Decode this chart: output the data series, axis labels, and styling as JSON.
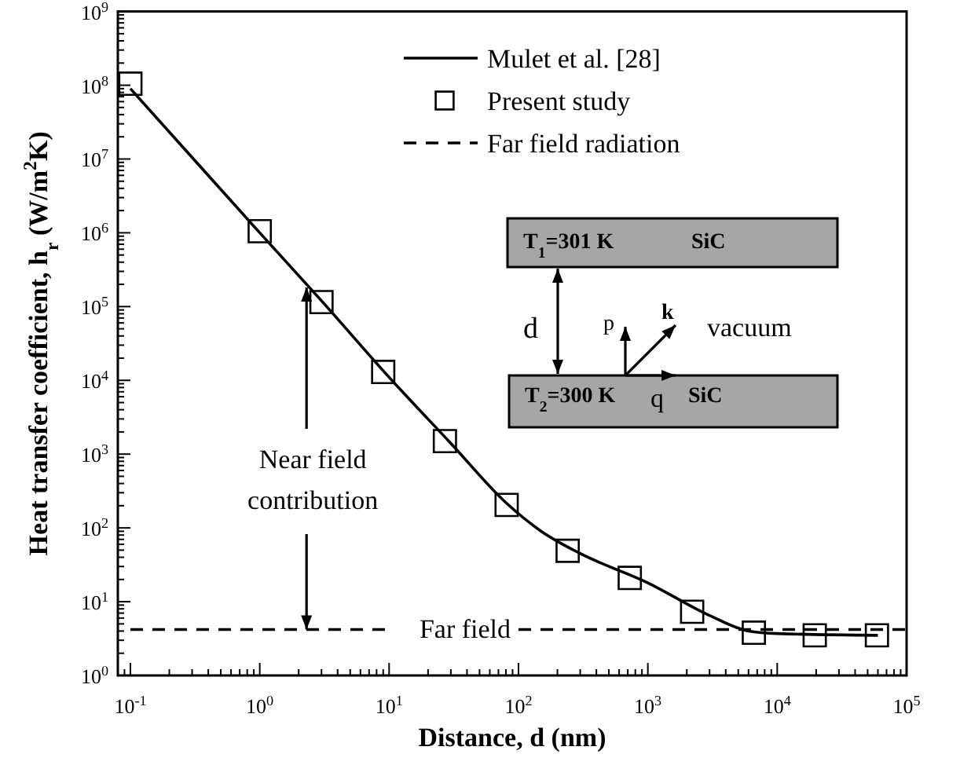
{
  "chart_data": {
    "type": "line",
    "xlabel": "Distance, d (nm)",
    "ylabel": "Heat transfer coefficient, h$_{r}$ (W/m$^{2}$K)",
    "log": "xy",
    "xlim": [
      0.08,
      100000
    ],
    "ylim": [
      1,
      1000000000
    ],
    "xticks": [
      {
        "value": 0.08,
        "label": null
      },
      {
        "value": 0.09,
        "label": null
      },
      {
        "value": 0.1,
        "label": "10$^{-1}$"
      },
      {
        "value": 0.2,
        "label": null
      },
      {
        "value": 0.3,
        "label": null
      },
      {
        "value": 0.4,
        "label": null
      },
      {
        "value": 0.5,
        "label": null
      },
      {
        "value": 0.6,
        "label": null
      },
      {
        "value": 0.7,
        "label": null
      },
      {
        "value": 0.8,
        "label": null
      },
      {
        "value": 0.9,
        "label": null
      },
      {
        "value": 1,
        "label": "10$^{0}$"
      },
      {
        "value": 2,
        "label": null
      },
      {
        "value": 3,
        "label": null
      },
      {
        "value": 4,
        "label": null
      },
      {
        "value": 5,
        "label": null
      },
      {
        "value": 6,
        "label": null
      },
      {
        "value": 7,
        "label": null
      },
      {
        "value": 8,
        "label": null
      },
      {
        "value": 9,
        "label": null
      },
      {
        "value": 10,
        "label": "10$^{1}$"
      },
      {
        "value": 20,
        "label": null
      },
      {
        "value": 30,
        "label": null
      },
      {
        "value": 40,
        "label": null
      },
      {
        "value": 50,
        "label": null
      },
      {
        "value": 60,
        "label": null
      },
      {
        "value": 70,
        "label": null
      },
      {
        "value": 80,
        "label": null
      },
      {
        "value": 90,
        "label": null
      },
      {
        "value": 100,
        "label": "10$^{2}$"
      },
      {
        "value": 200,
        "label": null
      },
      {
        "value": 300,
        "label": null
      },
      {
        "value": 400,
        "label": null
      },
      {
        "value": 500,
        "label": null
      },
      {
        "value": 600,
        "label": null
      },
      {
        "value": 700,
        "label": null
      },
      {
        "value": 800,
        "label": null
      },
      {
        "value": 900,
        "label": null
      },
      {
        "value": 1000,
        "label": "10$^{3}$"
      },
      {
        "value": 2000,
        "label": null
      },
      {
        "value": 3000,
        "label": null
      },
      {
        "value": 4000,
        "label": null
      },
      {
        "value": 5000,
        "label": null
      },
      {
        "value": 6000,
        "label": null
      },
      {
        "value": 7000,
        "label": null
      },
      {
        "value": 8000,
        "label": null
      },
      {
        "value": 9000,
        "label": null
      },
      {
        "value": 10000,
        "label": "10$^{4}$"
      },
      {
        "value": 20000,
        "label": null
      },
      {
        "value": 30000,
        "label": null
      },
      {
        "value": 40000,
        "label": null
      },
      {
        "value": 50000,
        "label": null
      },
      {
        "value": 60000,
        "label": null
      },
      {
        "value": 70000,
        "label": null
      },
      {
        "value": 80000,
        "label": null
      },
      {
        "value": 90000,
        "label": null
      },
      {
        "value": 100000,
        "label": "10$^{5}$"
      }
    ],
    "yticks": [
      {
        "value": 1,
        "label": "10$^{0}$"
      },
      {
        "value": 10,
        "label": "10$^{1}$"
      },
      {
        "value": 100,
        "label": "10$^{2}$"
      },
      {
        "value": 1000,
        "label": "10$^{3}$"
      },
      {
        "value": 10000,
        "label": "10$^{4}$"
      },
      {
        "value": 100000,
        "label": "10$^{5}$"
      },
      {
        "value": 1000000,
        "label": "10$^{6}$"
      },
      {
        "value": 10000000,
        "label": "10$^{7}$"
      },
      {
        "value": 100000000,
        "label": "10$^{8}$"
      },
      {
        "value": 1000000000,
        "label": "10$^{9}$"
      }
    ],
    "legend": "top right",
    "grid": false,
    "series": [
      {
        "name": "Mulet et al. [28]",
        "type": "line",
        "color": "#000000",
        "line_style": "solid",
        "marker": "none",
        "x": [
          0.1,
          1,
          3,
          10,
          30,
          80,
          150,
          300,
          1000,
          3000,
          6000,
          10000,
          60000
        ],
        "values": [
          90000000,
          1000000,
          120000,
          11000,
          1400,
          220,
          90,
          45,
          18,
          6.5,
          4,
          3.7,
          3.5
        ]
      },
      {
        "name": "Present study",
        "type": "scatter",
        "color": "#000000",
        "marker": "square",
        "x": [
          0.1,
          1,
          3,
          9,
          27,
          81,
          240,
          725,
          2200,
          6600,
          19500,
          59000
        ],
        "values": [
          105000000,
          1050000,
          115000,
          13000,
          1500,
          205,
          49,
          21,
          7.3,
          3.8,
          3.5,
          3.5
        ]
      },
      {
        "name": "Far field radiation",
        "type": "line",
        "color": "#000000",
        "line_style": "dashed",
        "marker": "none",
        "x": [
          0.1,
          9.5,
          30,
          100,
          100000
        ],
        "values": [
          4.2,
          4.2,
          null,
          4.2,
          4.2
        ]
      }
    ],
    "annotations": [
      {
        "text": "Near field contribution",
        "x": 2.3,
        "y": 4.2
      },
      "Far field",
      "T$_{1}$=301 K",
      "SiC",
      "d",
      "p",
      "k",
      "vacuum",
      "T$_{2}$=300 K",
      "q",
      "SiC"
    ]
  }
}
